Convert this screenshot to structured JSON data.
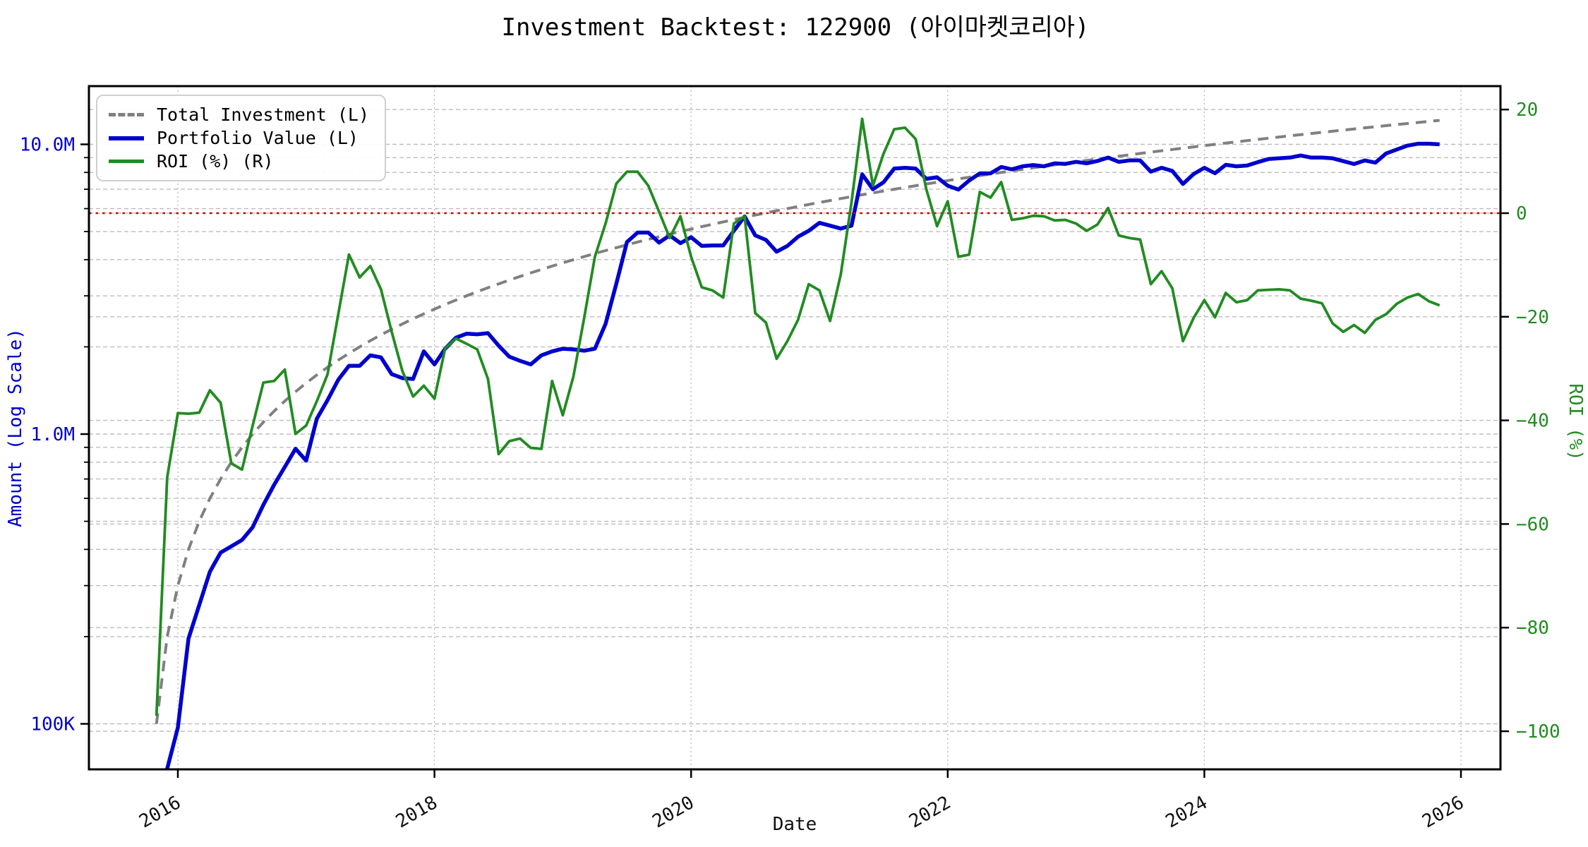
{
  "title": "Investment Backtest: 122900 (아이마켓코리아)",
  "legend": {
    "total_investment": "Total Investment (L)",
    "portfolio_value": "Portfolio Value (L)",
    "roi": "ROI (%) (R)"
  },
  "axes": {
    "x_label": "Date",
    "left_label": "Amount (Log Scale)",
    "right_label": "ROI (%)",
    "x_tick_labels": [
      "2016",
      "2018",
      "2020",
      "2022",
      "2024",
      "2026"
    ],
    "x_tick_years": [
      2016,
      2018,
      2020,
      2022,
      2024,
      2026
    ],
    "left_tick_labels": {
      "0.1": "100K",
      "1": "1.0M",
      "10": "10.0M"
    },
    "left_major_values_M": [
      0.1,
      1,
      10
    ],
    "left_minor_values_M": [
      0.2,
      0.3,
      0.4,
      0.5,
      0.6,
      0.7,
      0.8,
      0.9,
      2,
      3,
      4,
      5,
      6,
      7,
      8,
      9
    ],
    "right_tick_values": [
      20,
      0,
      -20,
      -40,
      -60,
      -80,
      -100
    ]
  },
  "colors": {
    "total_investment": "#808080",
    "portfolio_value": "#0000cd",
    "roi": "#228b22",
    "zero_line": "#d40000",
    "grid": "#bdbdbd",
    "axis": "#000000",
    "left_text": "#0000cd",
    "right_text": "#228b22",
    "x_text": "#111111"
  },
  "chart_data": {
    "type": "line",
    "title": "Investment Backtest: 122900 (아이마켓코리아)",
    "xlabel": "Date",
    "ylabel_left": "Amount (Log Scale)",
    "ylabel_right": "ROI (%)",
    "x_range_years": [
      2015.31,
      2026.31
    ],
    "left_log_range_M": [
      0.0695,
      15.8
    ],
    "right_range_pct": [
      -107,
      24.5
    ],
    "zero_roi_line": 0,
    "grid": true,
    "legend_position": "upper-left",
    "dates": [
      "2015-11",
      "2015-12",
      "2016-01",
      "2016-02",
      "2016-03",
      "2016-04",
      "2016-05",
      "2016-06",
      "2016-07",
      "2016-08",
      "2016-09",
      "2016-10",
      "2016-11",
      "2016-12",
      "2017-01",
      "2017-02",
      "2017-03",
      "2017-04",
      "2017-05",
      "2017-06",
      "2017-07",
      "2017-08",
      "2017-09",
      "2017-10",
      "2017-11",
      "2017-12",
      "2018-01",
      "2018-02",
      "2018-03",
      "2018-04",
      "2018-05",
      "2018-06",
      "2018-07",
      "2018-08",
      "2018-09",
      "2018-10",
      "2018-11",
      "2018-12",
      "2019-01",
      "2019-02",
      "2019-03",
      "2019-04",
      "2019-05",
      "2019-06",
      "2019-07",
      "2019-08",
      "2019-09",
      "2019-10",
      "2019-11",
      "2019-12",
      "2020-01",
      "2020-02",
      "2020-03",
      "2020-04",
      "2020-05",
      "2020-06",
      "2020-07",
      "2020-08",
      "2020-09",
      "2020-10",
      "2020-11",
      "2020-12",
      "2021-01",
      "2021-02",
      "2021-03",
      "2021-04",
      "2021-05",
      "2021-06",
      "2021-07",
      "2021-08",
      "2021-09",
      "2021-10",
      "2021-11",
      "2021-12",
      "2022-01",
      "2022-02",
      "2022-03",
      "2022-04",
      "2022-05",
      "2022-06",
      "2022-07",
      "2022-08",
      "2022-09",
      "2022-10",
      "2022-11",
      "2022-12",
      "2023-01",
      "2023-02",
      "2023-03",
      "2023-04",
      "2023-05",
      "2023-06",
      "2023-07",
      "2023-08",
      "2023-09",
      "2023-10",
      "2023-11",
      "2023-12",
      "2024-01",
      "2024-02",
      "2024-03",
      "2024-04",
      "2024-05",
      "2024-06",
      "2024-07",
      "2024-08",
      "2024-09",
      "2024-10",
      "2024-11",
      "2024-12",
      "2025-01",
      "2025-02",
      "2025-03",
      "2025-04",
      "2025-05",
      "2025-06",
      "2025-07",
      "2025-08",
      "2025-09",
      "2025-10",
      "2025-11"
    ],
    "series": [
      {
        "name": "Total Investment (L)",
        "axis": "left",
        "unit": "M",
        "style": "dashed",
        "color": "#808080",
        "values": [
          0.1,
          0.2,
          0.3,
          0.4,
          0.5,
          0.6,
          0.7,
          0.8,
          0.9,
          1.0,
          1.1,
          1.2,
          1.3,
          1.4,
          1.5,
          1.6,
          1.7,
          1.8,
          1.9,
          2.0,
          2.1,
          2.2,
          2.3,
          2.4,
          2.5,
          2.6,
          2.7,
          2.8,
          2.9,
          3.0,
          3.1,
          3.2,
          3.3,
          3.4,
          3.5,
          3.6,
          3.7,
          3.8,
          3.9,
          4.0,
          4.1,
          4.2,
          4.3,
          4.4,
          4.5,
          4.6,
          4.7,
          4.8,
          4.9,
          5.0,
          5.1,
          5.2,
          5.3,
          5.4,
          5.5,
          5.6,
          5.7,
          5.8,
          5.9,
          6.0,
          6.1,
          6.2,
          6.3,
          6.4,
          6.5,
          6.6,
          6.7,
          6.8,
          6.9,
          7.0,
          7.1,
          7.2,
          7.3,
          7.4,
          7.5,
          7.6,
          7.7,
          7.8,
          7.9,
          8.0,
          8.1,
          8.2,
          8.3,
          8.4,
          8.5,
          8.6,
          8.7,
          8.8,
          8.9,
          9.0,
          9.1,
          9.2,
          9.3,
          9.4,
          9.5,
          9.6,
          9.7,
          9.8,
          9.9,
          10.0,
          10.1,
          10.2,
          10.3,
          10.4,
          10.5,
          10.6,
          10.7,
          10.8,
          10.9,
          11.0,
          11.1,
          11.2,
          11.3,
          11.4,
          11.5,
          11.6,
          11.7,
          11.8,
          11.9,
          12.0,
          12.1
        ]
      },
      {
        "name": "Portfolio Value (L)",
        "axis": "left",
        "unit": "M",
        "style": "solid",
        "color": "#0000cd",
        "values": [
          0.045,
          0.07,
          0.097,
          0.197,
          0.257,
          0.335,
          0.39,
          0.41,
          0.431,
          0.477,
          0.57,
          0.668,
          0.77,
          0.89,
          0.81,
          1.13,
          1.31,
          1.54,
          1.72,
          1.72,
          1.87,
          1.84,
          1.61,
          1.56,
          1.55,
          1.93,
          1.74,
          1.97,
          2.15,
          2.22,
          2.21,
          2.23,
          2.02,
          1.85,
          1.79,
          1.74,
          1.87,
          1.93,
          1.97,
          1.96,
          1.94,
          1.97,
          2.4,
          3.3,
          4.6,
          4.96,
          4.96,
          4.58,
          4.85,
          4.56,
          4.78,
          4.46,
          4.48,
          4.48,
          5.03,
          5.64,
          4.85,
          4.68,
          4.26,
          4.46,
          4.8,
          5.03,
          5.36,
          5.24,
          5.12,
          5.24,
          7.88,
          7.0,
          7.4,
          8.25,
          8.3,
          8.25,
          7.6,
          7.7,
          7.2,
          6.98,
          7.5,
          7.94,
          7.94,
          8.35,
          8.2,
          8.4,
          8.48,
          8.4,
          8.6,
          8.56,
          8.7,
          8.6,
          8.76,
          9.0,
          8.7,
          8.8,
          8.8,
          8.05,
          8.3,
          8.1,
          7.3,
          7.9,
          8.3,
          7.95,
          8.5,
          8.4,
          8.45,
          8.68,
          8.9,
          8.95,
          9.0,
          9.15,
          9.0,
          9.0,
          8.95,
          8.75,
          8.55,
          8.8,
          8.65,
          9.3,
          9.6,
          9.9,
          10.05,
          10.05,
          10.0
        ]
      },
      {
        "name": "ROI (%) (R)",
        "axis": "right",
        "unit": "%",
        "style": "solid",
        "color": "#228b22",
        "values": [
          -97,
          -51,
          -38.6,
          -38.7,
          -38.5,
          -34.2,
          -36.6,
          -48.3,
          -49.5,
          -41.0,
          -32.7,
          -32.4,
          -30.2,
          -42.6,
          -41.0,
          -36.3,
          -31.1,
          -19.5,
          -8.0,
          -12.4,
          -10.2,
          -14.7,
          -22.9,
          -30.5,
          -35.4,
          -33.3,
          -35.8,
          -26.1,
          -24.2,
          -25.2,
          -26.3,
          -32.0,
          -46.5,
          -44.0,
          -43.5,
          -45.3,
          -45.5,
          -32.4,
          -39.0,
          -31.5,
          -20.2,
          -8.4,
          -2.0,
          5.7,
          8.0,
          8.0,
          5.3,
          0.3,
          -4.8,
          -0.6,
          -8.4,
          -14.3,
          -14.9,
          -16.3,
          -2.0,
          -0.6,
          -19.3,
          -21.1,
          -28.1,
          -24.7,
          -20.6,
          -13.7,
          -14.9,
          -20.8,
          -11.8,
          2.1,
          18.2,
          5.3,
          11.5,
          16.2,
          16.5,
          14.3,
          4.6,
          -2.5,
          2.3,
          -8.4,
          -8.0,
          4.1,
          3.0,
          6.0,
          -1.3,
          -1.0,
          -0.5,
          -0.6,
          -1.4,
          -1.3,
          -2.0,
          -3.4,
          -2.2,
          1.0,
          -4.3,
          -4.8,
          -5.1,
          -13.7,
          -11.2,
          -14.5,
          -24.7,
          -20.2,
          -16.8,
          -20.1,
          -15.4,
          -17.2,
          -16.8,
          -14.9,
          -14.8,
          -14.7,
          -14.9,
          -16.5,
          -16.9,
          -17.4,
          -21.3,
          -22.9,
          -21.6,
          -23.1,
          -20.6,
          -19.5,
          -17.5,
          -16.3,
          -15.6,
          -17.0,
          -17.8
        ]
      }
    ]
  }
}
